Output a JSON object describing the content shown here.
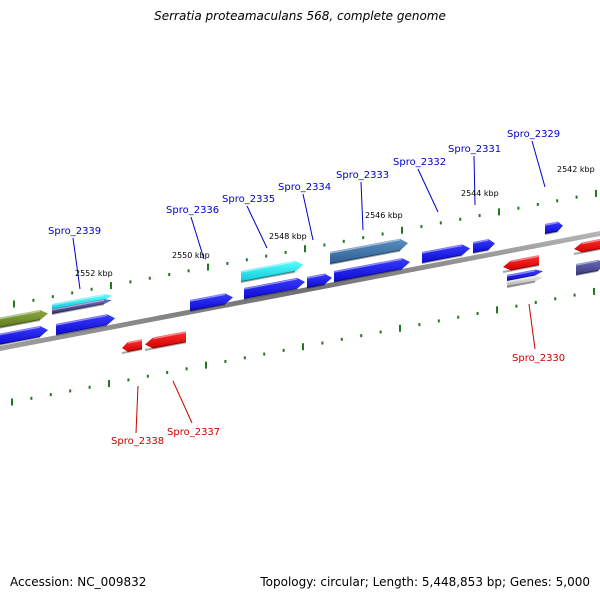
{
  "title": "Serratia proteamaculans 568, complete genome",
  "footer": {
    "accession": "Accession: NC_009832",
    "summary": "Topology: circular; Length: 5,448,853 bp; Genes: 5,000"
  },
  "colors": {
    "forward_gene": "#1a1aee",
    "reverse_gene": "#ee1111",
    "label_forward": "#0000cc",
    "label_reverse": "#cc0000",
    "tick": "#1f7a1f",
    "backbone": "#808080"
  },
  "scale_labels": [
    "2542 kbp",
    "2544 kbp",
    "2546 kbp",
    "2548 kbp",
    "2550 kbp",
    "2552 kbp"
  ],
  "gene_labels": {
    "forward": [
      "Spro_2329",
      "Spro_2331",
      "Spro_2332",
      "Spro_2333",
      "Spro_2334",
      "Spro_2335",
      "Spro_2336",
      "Spro_2339"
    ],
    "reverse": [
      "Spro_2330",
      "Spro_2337",
      "Spro_2338"
    ]
  }
}
